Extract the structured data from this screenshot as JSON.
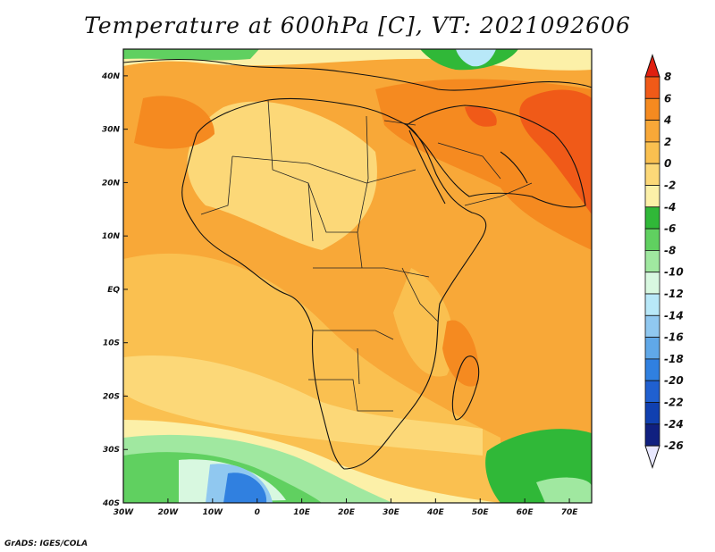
{
  "title": "Temperature at 600hPa [C], VT: 2021092606",
  "credit": "GrADS: IGES/COLA",
  "map": {
    "lon_ticks": [
      "30W",
      "20W",
      "10W",
      "0",
      "10E",
      "20E",
      "30E",
      "40E",
      "50E",
      "60E",
      "70E"
    ],
    "lat_ticks": [
      "40N",
      "30N",
      "20N",
      "10N",
      "EQ",
      "10S",
      "20S",
      "30S",
      "40S"
    ],
    "extent": {
      "lon": [
        -30,
        75
      ],
      "lat": [
        -40,
        45
      ]
    }
  },
  "colorbar": {
    "labels": [
      "8",
      "6",
      "4",
      "2",
      "0",
      "-2",
      "-4",
      "-6",
      "-8",
      "-10",
      "-12",
      "-14",
      "-16",
      "-18",
      "-20",
      "-22",
      "-24",
      "-26"
    ],
    "colors": [
      "#e02010",
      "#f05a18",
      "#f58a20",
      "#f8a838",
      "#fac050",
      "#fcd878",
      "#fcf0a8",
      "#30b838",
      "#60d060",
      "#a0e8a0",
      "#d8f8e0",
      "#b8e8f8",
      "#90c8f0",
      "#60a8e8",
      "#3080e0",
      "#2060d0",
      "#1040b0",
      "#102080",
      "#e8e8ff"
    ]
  },
  "field_colors": {
    "ocean_warm": "#f8a838",
    "ocean_mild": "#fac050",
    "land_pale": "#fcd878",
    "hot": "#f58a20",
    "very_hot": "#f05a18",
    "cold_green": "#30b838",
    "light_green": "#a0e8a0",
    "light_blue": "#b8e8f8",
    "blue": "#3080e0"
  }
}
